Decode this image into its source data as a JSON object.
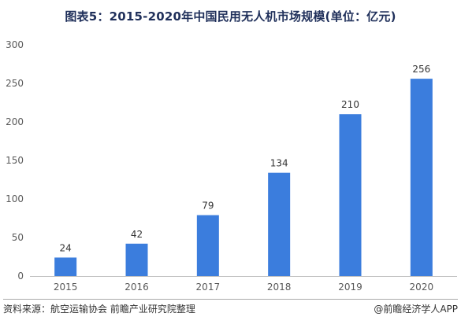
{
  "title": "图表5：2015-2020年中国民用无人机市场规模(单位：亿元)",
  "footer": {
    "source": "资料来源：航空运输协会 前瞻产业研究院整理",
    "credit": "@前瞻经济学人APP"
  },
  "chart_data": {
    "type": "bar",
    "categories": [
      "2015",
      "2016",
      "2017",
      "2018",
      "2019",
      "2020"
    ],
    "values": [
      24,
      42,
      79,
      134,
      210,
      256
    ],
    "ylim": [
      0,
      300
    ],
    "yticks": [
      0,
      50,
      100,
      150,
      200,
      250,
      300
    ],
    "grid": false,
    "legend": "none",
    "bar_color": "#3b7ddd",
    "data_labels": true
  }
}
